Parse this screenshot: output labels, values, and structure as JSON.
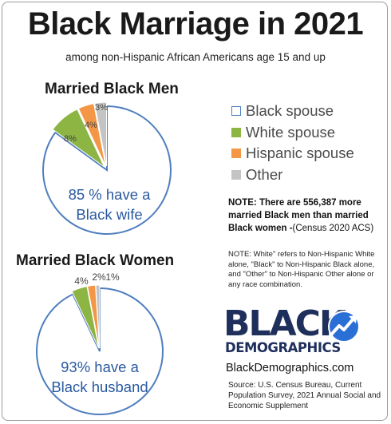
{
  "title": "Black Marriage in 2021",
  "subtitle": "among non-Hispanic African Americans age 15 and up",
  "colors": {
    "black_spouse": "#ffffff",
    "black_spouse_border": "#4f7ebe",
    "white_spouse": "#8cb544",
    "hispanic_spouse": "#f39645",
    "other": "#c4c4c4",
    "logo": "#1e2f5c"
  },
  "chart_data": [
    {
      "type": "pie",
      "title": "Married Black Men",
      "slices": [
        {
          "name": "Black spouse",
          "value": 85,
          "label": "85 % have a Black wife"
        },
        {
          "name": "White spouse",
          "value": 8,
          "label": "8%"
        },
        {
          "name": "Hispanic spouse",
          "value": 4,
          "label": "4%"
        },
        {
          "name": "Other",
          "value": 3,
          "label": "3%"
        }
      ]
    },
    {
      "type": "pie",
      "title": "Married Black Women",
      "slices": [
        {
          "name": "Black spouse",
          "value": 93,
          "label": "93% have a Black husband"
        },
        {
          "name": "White spouse",
          "value": 4,
          "label": "4%"
        },
        {
          "name": "Hispanic spouse",
          "value": 2,
          "label": "2%"
        },
        {
          "name": "Other",
          "value": 1,
          "label": "1%"
        }
      ]
    }
  ],
  "legend": {
    "items": [
      "Black spouse",
      "White spouse",
      "Hispanic spouse",
      "Other"
    ],
    "placement": "right"
  },
  "note": {
    "bold_prefix": "NOTE: There are  556,387 more married Black men than married Black women -",
    "suffix": "(Census 2020 ACS)"
  },
  "footnote": "NOTE: White\" refers to Non-Hispanic White alone, \"Black\" to Non-Hispanic Black alone, and \"Other\" to Non-Hispanic Other alone or any race combination.",
  "logo": {
    "line1": "BLACK",
    "line2": "DEMOGRAPHICS",
    "icon": "trend-arrow-icon"
  },
  "site": "BlackDemographics.com",
  "source": "Source: U.S. Census Bureau, Current Population Survey, 2021 Annual Social and Economic Supplement"
}
